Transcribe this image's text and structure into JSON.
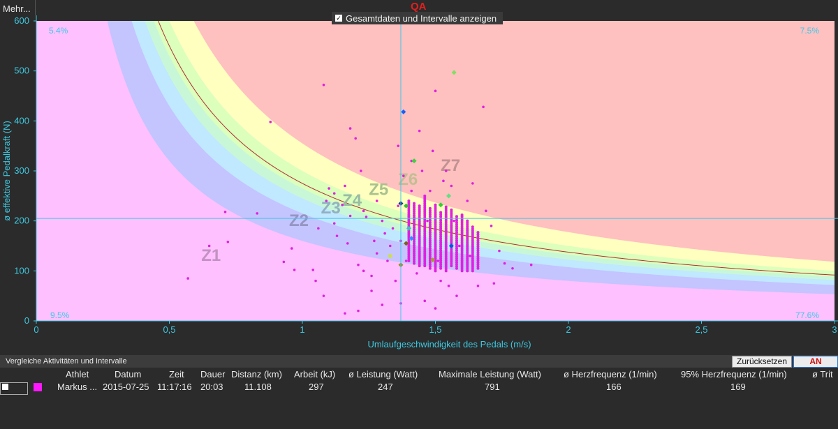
{
  "toolbar": {
    "more_label": "Mehr..."
  },
  "qa_label": "QA",
  "toggle": {
    "label": "Gesamtdaten und Intervalle anzeigen",
    "checked": true
  },
  "chart_data": {
    "type": "scatter",
    "xlabel": "Umlaufgeschwindigkeit des Pedals (m/s)",
    "ylabel": "ø effektive Pedalkraft (N)",
    "xlim": [
      0,
      3
    ],
    "ylim": [
      0,
      600
    ],
    "x_ticks": [
      "0",
      "0,5",
      "1",
      "1,5",
      "2",
      "2,5",
      "3"
    ],
    "y_ticks": [
      "0",
      "100",
      "200",
      "300",
      "400",
      "500",
      "600"
    ],
    "crosshair": {
      "x": 1.37,
      "y": 205
    },
    "quadrant_labels": {
      "top_left": "5.4%",
      "top_right": "7.5%",
      "bottom_left": "9.5%",
      "bottom_right": "77.6%"
    },
    "zones": [
      {
        "name": "Z1",
        "power": 0,
        "color": "#ffc0ff",
        "label_x": 0.62,
        "label_y": 120
      },
      {
        "name": "Z2",
        "power": 160,
        "color": "#c4c4ff",
        "label_x": 0.95,
        "label_y": 190
      },
      {
        "name": "Z3",
        "power": 215,
        "color": "#c0e8ff",
        "label_x": 1.07,
        "label_y": 215
      },
      {
        "name": "Z4",
        "power": 245,
        "color": "#c8f7d8",
        "label_x": 1.15,
        "label_y": 230
      },
      {
        "name": "Z5",
        "power": 265,
        "color": "#dcffbc",
        "label_x": 1.25,
        "label_y": 252
      },
      {
        "name": "Z6",
        "power": 300,
        "color": "#ffffc0",
        "label_x": 1.36,
        "label_y": 272
      },
      {
        "name": "Z7",
        "power": 355,
        "color": "#ffc0c0",
        "label_x": 1.52,
        "label_y": 300
      }
    ],
    "reference_curve": {
      "power": 275,
      "color": "#b03030"
    },
    "series": [
      {
        "values": [
          [
            0.57,
            85
          ],
          [
            0.65,
            150
          ],
          [
            0.71,
            218
          ],
          [
            0.72,
            158
          ],
          [
            0.83,
            215
          ],
          [
            0.88,
            398
          ],
          [
            0.93,
            118
          ],
          [
            0.96,
            145
          ],
          [
            0.97,
            102
          ],
          [
            1.04,
            102
          ],
          [
            1.05,
            80
          ],
          [
            1.06,
            185
          ],
          [
            1.08,
            472
          ],
          [
            1.08,
            50
          ],
          [
            1.09,
            240
          ],
          [
            1.1,
            265
          ],
          [
            1.12,
            195
          ],
          [
            1.12,
            255
          ],
          [
            1.13,
            170
          ],
          [
            1.15,
            232
          ],
          [
            1.16,
            15
          ],
          [
            1.16,
            270
          ],
          [
            1.17,
            155
          ],
          [
            1.18,
            385
          ],
          [
            1.18,
            210
          ],
          [
            1.2,
            365
          ],
          [
            1.21,
            20
          ],
          [
            1.21,
            112
          ],
          [
            1.22,
            300
          ],
          [
            1.23,
            220
          ],
          [
            1.23,
            100
          ],
          [
            1.24,
            208
          ],
          [
            1.26,
            90
          ],
          [
            1.26,
            60
          ],
          [
            1.27,
            160
          ],
          [
            1.28,
            240
          ],
          [
            1.28,
            135
          ],
          [
            1.3,
            200
          ],
          [
            1.3,
            32
          ],
          [
            1.31,
            175
          ],
          [
            1.32,
            120
          ],
          [
            1.33,
            150
          ],
          [
            1.34,
            185
          ],
          [
            1.35,
            80
          ],
          [
            1.36,
            350
          ],
          [
            1.36,
            230
          ],
          [
            1.37,
            160
          ],
          [
            1.37,
            35
          ],
          [
            1.38,
            290
          ],
          [
            1.39,
            120
          ],
          [
            1.4,
            200
          ],
          [
            1.41,
            320
          ],
          [
            1.41,
            260
          ],
          [
            1.42,
            230
          ],
          [
            1.43,
            95
          ],
          [
            1.44,
            380
          ],
          [
            1.45,
            300
          ],
          [
            1.46,
            40
          ],
          [
            1.47,
            200
          ],
          [
            1.48,
            260
          ],
          [
            1.49,
            340
          ],
          [
            1.5,
            25
          ],
          [
            1.5,
            460
          ],
          [
            1.51,
            120
          ],
          [
            1.52,
            80
          ],
          [
            1.53,
            280
          ],
          [
            1.54,
            300
          ],
          [
            1.55,
            70
          ],
          [
            1.56,
            270
          ],
          [
            1.57,
            200
          ],
          [
            1.58,
            50
          ],
          [
            1.59,
            150
          ],
          [
            1.6,
            210
          ],
          [
            1.62,
            240
          ],
          [
            1.63,
            130
          ],
          [
            1.64,
            275
          ],
          [
            1.66,
            70
          ],
          [
            1.68,
            428
          ],
          [
            1.69,
            220
          ],
          [
            1.71,
            190
          ],
          [
            1.72,
            75
          ],
          [
            1.74,
            140
          ],
          [
            1.76,
            115
          ],
          [
            1.79,
            105
          ],
          [
            1.86,
            112
          ]
        ]
      }
    ],
    "dense_columns": [
      {
        "x": 1.4,
        "y_min": 120,
        "y_max": 240
      },
      {
        "x": 1.42,
        "y_min": 115,
        "y_max": 235
      },
      {
        "x": 1.44,
        "y_min": 110,
        "y_max": 230
      },
      {
        "x": 1.46,
        "y_min": 110,
        "y_max": 250
      },
      {
        "x": 1.48,
        "y_min": 105,
        "y_max": 225
      },
      {
        "x": 1.5,
        "y_min": 100,
        "y_max": 235
      },
      {
        "x": 1.52,
        "y_min": 105,
        "y_max": 220
      },
      {
        "x": 1.54,
        "y_min": 100,
        "y_max": 230
      },
      {
        "x": 1.56,
        "y_min": 110,
        "y_max": 225
      },
      {
        "x": 1.58,
        "y_min": 105,
        "y_max": 210
      },
      {
        "x": 1.6,
        "y_min": 100,
        "y_max": 215
      },
      {
        "x": 1.62,
        "y_min": 100,
        "y_max": 200
      },
      {
        "x": 1.64,
        "y_min": 100,
        "y_max": 190
      },
      {
        "x": 1.66,
        "y_min": 105,
        "y_max": 180
      }
    ],
    "interval_markers": [
      {
        "x": 1.38,
        "y": 418,
        "color": "#1060ff",
        "shape": "diamond"
      },
      {
        "x": 1.57,
        "y": 497,
        "color": "#80e060",
        "shape": "diamond"
      },
      {
        "x": 1.42,
        "y": 320,
        "color": "#40d040",
        "shape": "diamond"
      },
      {
        "x": 1.37,
        "y": 235,
        "color": "#103080",
        "shape": "diamond"
      },
      {
        "x": 1.39,
        "y": 230,
        "color": "#30c030",
        "shape": "diamond"
      },
      {
        "x": 1.52,
        "y": 232,
        "color": "#30d030",
        "shape": "diamond"
      },
      {
        "x": 1.55,
        "y": 250,
        "color": "#60e080",
        "shape": "diamond"
      },
      {
        "x": 1.41,
        "y": 165,
        "color": "#3090ff",
        "shape": "diamond"
      },
      {
        "x": 1.56,
        "y": 150,
        "color": "#1050e0",
        "shape": "diamond"
      },
      {
        "x": 1.39,
        "y": 155,
        "color": "#806020",
        "shape": "diamond"
      },
      {
        "x": 1.33,
        "y": 130,
        "color": "#d0e040",
        "shape": "diamond"
      },
      {
        "x": 1.37,
        "y": 112,
        "color": "#909020",
        "shape": "diamond"
      },
      {
        "x": 1.49,
        "y": 122,
        "color": "#a0a030",
        "shape": "diamond"
      },
      {
        "x": 1.4,
        "y": 185,
        "color": "#40c0c0",
        "shape": "diamond"
      }
    ],
    "point_color": "#e020e0"
  },
  "compare": {
    "title": "Vergleiche Aktivitäten und Intervalle",
    "reset_label": "Zurücksetzen",
    "an_label": "AN",
    "columns": [
      "Athlet",
      "Datum",
      "Zeit",
      "Dauer",
      "Distanz (km)",
      "Arbeit (kJ)",
      "ø Leistung (Watt)",
      "Maximale Leistung (Watt)",
      "ø Herzfrequenz (1/min)",
      "95% Herzfrequenz (1/min)",
      "ø Trit"
    ],
    "rows": [
      {
        "color": "#ff18ff",
        "checked": true,
        "cells": [
          "Markus ...",
          "2015-07-25",
          "11:17:16",
          "20:03",
          "11.108",
          "297",
          "247",
          "791",
          "166",
          "169",
          ""
        ]
      }
    ]
  }
}
